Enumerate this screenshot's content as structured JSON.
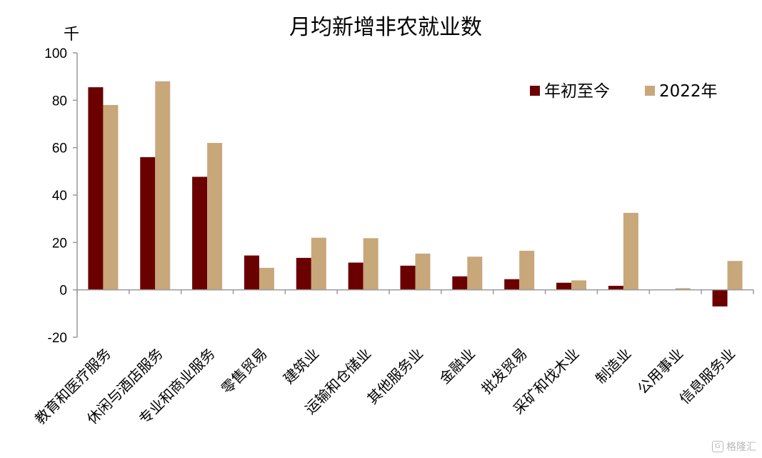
{
  "chart_data": {
    "type": "bar",
    "title": "月均新增非农就业数",
    "unit": "千",
    "categories": [
      "教育和医疗服务",
      "休闲与酒店服务",
      "专业和商业服务",
      "零售贸易",
      "建筑业",
      "运输和仓储业",
      "其他服务业",
      "金融业",
      "批发贸易",
      "采矿和伐木业",
      "制造业",
      "公用事业",
      "信息服务业"
    ],
    "series": [
      {
        "name": "年初至今",
        "color": "#6b0000",
        "values": [
          85.5,
          56.0,
          47.7,
          14.5,
          13.5,
          11.5,
          10.2,
          5.7,
          4.5,
          3.0,
          1.7,
          0.0,
          -7.0
        ]
      },
      {
        "name": "2022年",
        "color": "#c8a77a",
        "values": [
          78.0,
          88.0,
          62.0,
          9.3,
          22.0,
          21.8,
          15.3,
          14.0,
          16.5,
          4.0,
          32.5,
          0.7,
          12.2
        ]
      }
    ],
    "ylim": [
      -20,
      100
    ],
    "yticks": [
      -20,
      0,
      20,
      40,
      60,
      80,
      100
    ],
    "legend": "top-right",
    "grid": false
  },
  "watermark": "格隆汇"
}
